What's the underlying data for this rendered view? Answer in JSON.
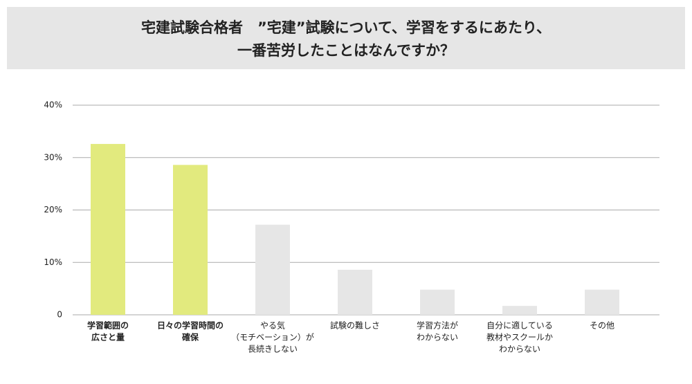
{
  "chart_data": {
    "type": "bar",
    "title": [
      "宅建試験合格者　”宅建”試験について、学習をするにあたり、",
      "一番苦労したことはなんですか？"
    ],
    "categories": [
      [
        "学習範囲の",
        "広さと量"
      ],
      [
        "日々の学習時間の",
        "確保"
      ],
      [
        "やる気",
        "（モチベーション）が",
        "長続きしない"
      ],
      [
        "試験の難しさ"
      ],
      [
        "学習方法が",
        "わからない"
      ],
      [
        "自分に適している",
        "教材やスクールか",
        "わからない"
      ],
      [
        "その他"
      ]
    ],
    "values": [
      32.6,
      28.6,
      17.2,
      8.6,
      4.8,
      1.7,
      4.8
    ],
    "colors": [
      "#e2ea7e",
      "#e2ea7e",
      "#e6e6e6",
      "#e6e6e6",
      "#e6e6e6",
      "#e6e6e6",
      "#e6e6e6"
    ],
    "ylim": [
      0,
      40
    ],
    "yticks": [
      0,
      {
        "value": 10,
        "label": "10%"
      },
      {
        "value": 20,
        "label": "20%"
      },
      {
        "value": 30,
        "label": "30%"
      },
      {
        "value": 40,
        "label": "40%"
      }
    ],
    "grid": true
  }
}
